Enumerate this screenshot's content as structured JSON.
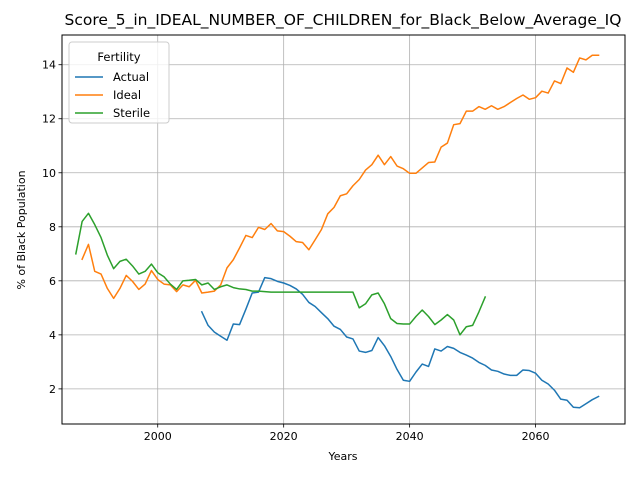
{
  "chart_data": {
    "type": "line",
    "title": "Score_5_in_IDEAL_NUMBER_OF_CHILDREN_for_Black_Below_Average_IQ",
    "xlabel": "Years",
    "ylabel": "% of Black Population",
    "xlim": [
      1984.8,
      2074.2
    ],
    "ylim": [
      0.7,
      15.1
    ],
    "xticks": [
      2000,
      2020,
      2040,
      2060
    ],
    "xtick_labels": [
      "2000",
      "2020",
      "2040",
      "2060"
    ],
    "yticks": [
      2,
      4,
      6,
      8,
      10,
      12,
      14
    ],
    "ytick_labels": [
      "2",
      "4",
      "6",
      "8",
      "10",
      "12",
      "14"
    ],
    "grid": true,
    "legend": {
      "title": "Fertility",
      "location": "top-left"
    },
    "series": [
      {
        "name": "Actual",
        "color": "#1f77b4",
        "x": [
          2007,
          2008,
          2009,
          2010,
          2011,
          2012,
          2013,
          2014,
          2015,
          2016,
          2017,
          2018,
          2019,
          2020,
          2021,
          2022,
          2023,
          2024,
          2025,
          2026,
          2027,
          2028,
          2029,
          2030,
          2031,
          2032,
          2033,
          2034,
          2035,
          2036,
          2037,
          2038,
          2039,
          2040,
          2041,
          2042,
          2043,
          2044,
          2045,
          2046,
          2047,
          2048,
          2049,
          2050,
          2051,
          2052,
          2053,
          2054,
          2055,
          2056,
          2057,
          2058,
          2059,
          2060,
          2061,
          2062,
          2063,
          2064,
          2065,
          2066,
          2067,
          2068,
          2069,
          2070
        ],
        "values": [
          4.85,
          4.35,
          4.1,
          3.95,
          3.8,
          4.4,
          4.38,
          4.95,
          5.55,
          5.58,
          6.12,
          6.08,
          5.98,
          5.92,
          5.83,
          5.7,
          5.5,
          5.2,
          5.05,
          4.82,
          4.6,
          4.32,
          4.2,
          3.92,
          3.85,
          3.4,
          3.35,
          3.42,
          3.9,
          3.6,
          3.2,
          2.72,
          2.32,
          2.28,
          2.62,
          2.92,
          2.83,
          3.48,
          3.4,
          3.57,
          3.5,
          3.35,
          3.25,
          3.14,
          2.98,
          2.87,
          2.7,
          2.65,
          2.55,
          2.5,
          2.5,
          2.7,
          2.68,
          2.58,
          2.32,
          2.18,
          1.95,
          1.62,
          1.58,
          1.32,
          1.3,
          1.45,
          1.6,
          1.72
        ]
      },
      {
        "name": "Ideal",
        "color": "#ff7f0e",
        "x": [
          1988,
          1989,
          1990,
          1991,
          1992,
          1993,
          1994,
          1995,
          1996,
          1997,
          1998,
          1999,
          2000,
          2001,
          2002,
          2003,
          2004,
          2005,
          2006,
          2007,
          2008,
          2009,
          2010,
          2011,
          2012,
          2013,
          2014,
          2015,
          2016,
          2017,
          2018,
          2019,
          2020,
          2021,
          2022,
          2023,
          2024,
          2025,
          2026,
          2027,
          2028,
          2029,
          2030,
          2031,
          2032,
          2033,
          2034,
          2035,
          2036,
          2037,
          2038,
          2039,
          2040,
          2041,
          2042,
          2043,
          2044,
          2045,
          2046,
          2047,
          2048,
          2049,
          2050,
          2051,
          2052,
          2053,
          2054,
          2055,
          2056,
          2057,
          2058,
          2059,
          2060,
          2061,
          2062,
          2063,
          2064,
          2065,
          2066,
          2067,
          2068,
          2069,
          2070
        ],
        "values": [
          6.8,
          7.35,
          6.35,
          6.25,
          5.72,
          5.35,
          5.72,
          6.2,
          5.98,
          5.68,
          5.88,
          6.38,
          6.05,
          5.88,
          5.85,
          5.6,
          5.85,
          5.78,
          6.02,
          5.55,
          5.58,
          5.62,
          5.85,
          6.48,
          6.78,
          7.22,
          7.68,
          7.6,
          7.98,
          7.9,
          8.12,
          7.85,
          7.82,
          7.65,
          7.45,
          7.42,
          7.15,
          7.52,
          7.9,
          8.48,
          8.72,
          9.15,
          9.22,
          9.52,
          9.75,
          10.1,
          10.3,
          10.65,
          10.3,
          10.6,
          10.25,
          10.15,
          9.98,
          9.98,
          10.18,
          10.38,
          10.4,
          10.95,
          11.1,
          11.78,
          11.82,
          12.28,
          12.28,
          12.45,
          12.35,
          12.48,
          12.35,
          12.45,
          12.6,
          12.75,
          12.88,
          12.72,
          12.78,
          13.02,
          12.95,
          13.4,
          13.3,
          13.88,
          13.72,
          14.25,
          14.18,
          14.35,
          14.35
        ]
      },
      {
        "name": "Sterile",
        "color": "#2ca02c",
        "x": [
          1987,
          1988,
          1989,
          1990,
          1991,
          1992,
          1993,
          1994,
          1995,
          1996,
          1997,
          1998,
          1999,
          2000,
          2001,
          2002,
          2003,
          2004,
          2005,
          2006,
          2007,
          2008,
          2009,
          2010,
          2011,
          2012,
          2013,
          2014,
          2015,
          2016,
          2017,
          2018,
          2019,
          2020,
          2021,
          2022,
          2023,
          2024,
          2025,
          2026,
          2027,
          2028,
          2029,
          2030,
          2031,
          2032,
          2033,
          2034,
          2035,
          2036,
          2037,
          2038,
          2039,
          2040,
          2041,
          2042,
          2043,
          2044,
          2045,
          2046,
          2047,
          2048,
          2049,
          2050,
          2051,
          2052
        ],
        "values": [
          7.0,
          8.2,
          8.5,
          8.08,
          7.6,
          6.95,
          6.45,
          6.72,
          6.8,
          6.55,
          6.25,
          6.35,
          6.62,
          6.3,
          6.15,
          5.88,
          5.68,
          6.0,
          6.02,
          6.05,
          5.85,
          5.92,
          5.68,
          5.78,
          5.85,
          5.75,
          5.7,
          5.68,
          5.62,
          5.62,
          5.6,
          5.58,
          5.58,
          5.58,
          5.58,
          5.58,
          5.58,
          5.58,
          5.58,
          5.58,
          5.58,
          5.58,
          5.58,
          5.58,
          5.58,
          5.0,
          5.15,
          5.48,
          5.55,
          5.15,
          4.6,
          4.42,
          4.4,
          4.4,
          4.68,
          4.92,
          4.68,
          4.38,
          4.55,
          4.75,
          4.55,
          4.0,
          4.3,
          4.35,
          4.85,
          5.4
        ]
      }
    ]
  }
}
